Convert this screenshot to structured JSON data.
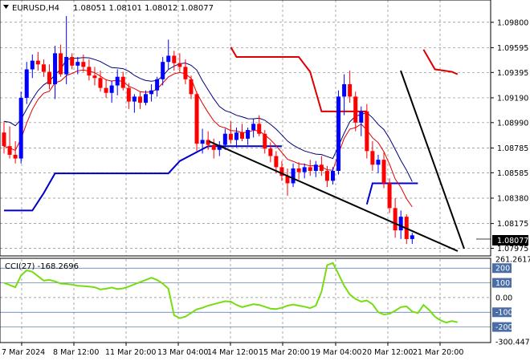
{
  "window": {
    "symbol_timeframe": "EURUSD,H4",
    "ohlc": "1.08051 1.08101 1.08012 1.08077"
  },
  "price_axis": {
    "ticks": [
      "1.09800",
      "1.09595",
      "1.09395",
      "1.09190",
      "1.08990",
      "1.08785",
      "1.08585",
      "1.08380",
      "1.08175",
      "1.07975"
    ],
    "current_price": "1.08077"
  },
  "cci": {
    "label": "CCI(27) -168.2696",
    "ticks": [
      "261.2617",
      "200",
      "100",
      "0.00",
      "-100",
      "-200",
      "-300.4474"
    ],
    "highlight_levels": [
      "200",
      "100",
      "-100",
      "-200"
    ],
    "values": [
      100,
      85,
      70,
      150,
      185,
      175,
      145,
      115,
      120,
      110,
      95,
      92,
      88,
      80,
      78,
      75,
      70,
      55,
      60,
      68,
      58,
      62,
      75,
      90,
      105,
      120,
      135,
      120,
      95,
      60,
      -120,
      -140,
      -130,
      -105,
      -80,
      -70,
      -55,
      -45,
      -35,
      -25,
      -28,
      -50,
      -65,
      -55,
      -45,
      -50,
      -62,
      -75,
      -78,
      -70,
      -55,
      -48,
      -55,
      -62,
      -72,
      -55,
      40,
      220,
      235,
      160,
      80,
      20,
      -10,
      -28,
      -20,
      -45,
      -100,
      -115,
      -110,
      -90,
      -65,
      -60,
      -95,
      -105,
      -50,
      -85,
      -130,
      -155,
      -170,
      -160,
      -168
    ]
  },
  "time_axis": {
    "labels": [
      "7 Mar 2024",
      "8 Mar 12:00",
      "11 Mar 20:00",
      "13 Mar 04:00",
      "14 Mar 12:00",
      "15 Mar 20:00",
      "19 Mar 04:00",
      "20 Mar 12:00",
      "21 Mar 20:00"
    ]
  },
  "colors": {
    "bull": "#0000ff",
    "bear": "#ff0000",
    "ma_fast": "#e00000",
    "ma_slow": "#00007a",
    "channel_low": "#0000cc",
    "channel_high": "#dd0000",
    "cci_line": "#77dd11",
    "trendline": "#000000",
    "grid": "#888888",
    "price_tag": "#000000",
    "cci_tag": "#4a6da7"
  },
  "chart_data": {
    "type": "candlestick",
    "series": [
      {
        "name": "EURUSD,H4",
        "ohlc": [
          [
            1.0891,
            1.09,
            1.0874,
            1.088
          ],
          [
            1.088,
            1.0896,
            1.087,
            1.0873
          ],
          [
            1.0873,
            1.0884,
            1.0866,
            1.087
          ],
          [
            1.087,
            1.0924,
            1.0866,
            1.0919
          ],
          [
            1.0919,
            1.0948,
            1.0914,
            1.0942
          ],
          [
            1.0942,
            1.0954,
            1.0935,
            1.0949
          ],
          [
            1.0949,
            1.0956,
            1.0941,
            1.0946
          ],
          [
            1.0946,
            1.095,
            1.0936,
            1.094
          ],
          [
            1.094,
            1.0946,
            1.0926,
            1.093
          ],
          [
            1.093,
            1.0961,
            1.0918,
            1.0955
          ],
          [
            1.0955,
            1.0962,
            1.0936,
            1.0938
          ],
          [
            1.0938,
            1.0985,
            1.093,
            1.0952
          ],
          [
            1.0952,
            1.0955,
            1.0942,
            1.0945
          ],
          [
            1.0945,
            1.0952,
            1.0938,
            1.0948
          ],
          [
            1.0948,
            1.0954,
            1.094,
            1.0944
          ],
          [
            1.0944,
            1.095,
            1.0933,
            1.0937
          ],
          [
            1.0937,
            1.0944,
            1.0929,
            1.0935
          ],
          [
            1.0935,
            1.0941,
            1.0924,
            1.0927
          ],
          [
            1.0927,
            1.0934,
            1.0919,
            1.0923
          ],
          [
            1.0923,
            1.0933,
            1.0915,
            1.0929
          ],
          [
            1.0929,
            1.0942,
            1.0921,
            1.0936
          ],
          [
            1.0936,
            1.094,
            1.0925,
            1.0927
          ],
          [
            1.0927,
            1.0931,
            1.091,
            1.0916
          ],
          [
            1.0916,
            1.0922,
            1.0907,
            1.092
          ],
          [
            1.092,
            1.0924,
            1.091,
            1.0915
          ],
          [
            1.0915,
            1.0925,
            1.0913,
            1.0922
          ],
          [
            1.0922,
            1.093,
            1.0916,
            1.0925
          ],
          [
            1.0925,
            1.0936,
            1.092,
            1.0934
          ],
          [
            1.0934,
            1.0952,
            1.0929,
            1.0948
          ],
          [
            1.0948,
            1.0966,
            1.0942,
            1.0953
          ],
          [
            1.0953,
            1.0957,
            1.0941,
            1.0947
          ],
          [
            1.0947,
            1.0955,
            1.094,
            1.0944
          ],
          [
            1.0944,
            1.095,
            1.093,
            1.0934
          ],
          [
            1.0934,
            1.0937,
            1.0918,
            1.0922
          ],
          [
            1.0922,
            1.0924,
            1.0876,
            1.0882
          ],
          [
            1.0882,
            1.0894,
            1.0874,
            1.0885
          ],
          [
            1.0885,
            1.0892,
            1.0877,
            1.0881
          ],
          [
            1.0881,
            1.0886,
            1.087,
            1.0877
          ],
          [
            1.0877,
            1.0884,
            1.0872,
            1.0881
          ],
          [
            1.0881,
            1.0894,
            1.0877,
            1.089
          ],
          [
            1.089,
            1.09,
            1.0882,
            1.0885
          ],
          [
            1.0885,
            1.0895,
            1.0879,
            1.0891
          ],
          [
            1.0891,
            1.0898,
            1.0884,
            1.0886
          ],
          [
            1.0886,
            1.0895,
            1.0881,
            1.0893
          ],
          [
            1.0893,
            1.0902,
            1.0887,
            1.0898
          ],
          [
            1.0898,
            1.0905,
            1.0888,
            1.089
          ],
          [
            1.089,
            1.0893,
            1.0874,
            1.0878
          ],
          [
            1.0878,
            1.0883,
            1.0867,
            1.0872
          ],
          [
            1.0872,
            1.0876,
            1.0858,
            1.0863
          ],
          [
            1.0863,
            1.0868,
            1.0852,
            1.0856
          ],
          [
            1.0856,
            1.0862,
            1.084,
            1.085
          ],
          [
            1.085,
            1.0866,
            1.0847,
            1.0862
          ],
          [
            1.0862,
            1.0867,
            1.0853,
            1.0859
          ],
          [
            1.0859,
            1.0866,
            1.0854,
            1.0863
          ],
          [
            1.0863,
            1.0869,
            1.0856,
            1.086
          ],
          [
            1.086,
            1.0868,
            1.0855,
            1.0865
          ],
          [
            1.0865,
            1.0872,
            1.0856,
            1.086
          ],
          [
            1.086,
            1.0864,
            1.0847,
            1.0852
          ],
          [
            1.0852,
            1.0863,
            1.0849,
            1.086
          ],
          [
            1.086,
            1.0925,
            1.0857,
            1.092
          ],
          [
            1.092,
            1.0938,
            1.0905,
            1.093
          ],
          [
            1.093,
            1.0941,
            1.0915,
            1.092
          ],
          [
            1.092,
            1.0924,
            1.0892,
            1.0899
          ],
          [
            1.0899,
            1.0912,
            1.0888,
            1.0908
          ],
          [
            1.0908,
            1.0914,
            1.087,
            1.0876
          ],
          [
            1.0876,
            1.0884,
            1.086,
            1.0865
          ],
          [
            1.0865,
            1.0873,
            1.0858,
            1.0869
          ],
          [
            1.0869,
            1.0875,
            1.0846,
            1.085
          ],
          [
            1.085,
            1.0854,
            1.0826,
            1.083
          ],
          [
            1.083,
            1.0838,
            1.0806,
            1.0812
          ],
          [
            1.0812,
            1.0828,
            1.0805,
            1.0823
          ],
          [
            1.0823,
            1.0825,
            1.0801,
            1.0805
          ],
          [
            1.0805,
            1.081,
            1.0801,
            1.0808
          ]
        ]
      }
    ],
    "ylim": [
      1.0792,
      1.0998
    ],
    "cci_ylim": [
      -300.4474,
      261.2617
    ],
    "grid": true,
    "trendlines": "two descending black trendlines"
  }
}
